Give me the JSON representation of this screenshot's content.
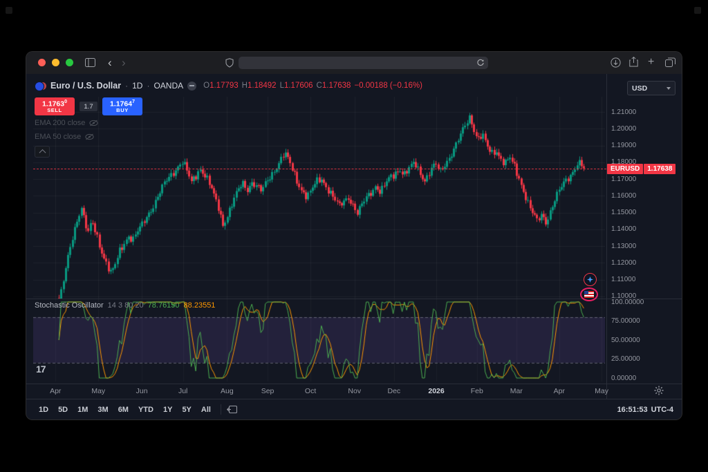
{
  "browser": {
    "url_text": ""
  },
  "header": {
    "title": "Euro / U.S. Dollar",
    "separator": "·",
    "timeframe": "1D",
    "exchange": "OANDA",
    "o_label": "O",
    "o": "1.17793",
    "h_label": "H",
    "h": "1.18492",
    "l_label": "L",
    "l": "1.17606",
    "c_label": "C",
    "c": "1.17638",
    "change": "−0.00188 (−0.16%)",
    "currency": "USD"
  },
  "trade": {
    "sell_price": "1.1763",
    "sell_sup": "0",
    "sell_label": "SELL",
    "spread": "1.7",
    "buy_price": "1.1764",
    "buy_sup": "7",
    "buy_label": "BUY"
  },
  "indicators": {
    "ema200": "EMA 200 close",
    "ema50": "EMA 50 close"
  },
  "price_axis": [
    "1.21000",
    "1.20000",
    "1.19000",
    "1.18000",
    "1.17000",
    "1.16000",
    "1.15000",
    "1.14000",
    "1.13000",
    "1.12000",
    "1.11000",
    "1.10000"
  ],
  "price_label": {
    "symbol": "EURUSD",
    "value": "1.17638"
  },
  "stoch_header": {
    "title": "Stochastic Oscillator",
    "params": "14 3 80 20",
    "k": "78.76150",
    "d": "88.23551"
  },
  "stoch_axis": [
    "100.00000",
    "75.00000",
    "50.00000",
    "25.00000",
    "0.00000"
  ],
  "time_axis": [
    {
      "label": "Apr",
      "f": 0.039
    },
    {
      "label": "May",
      "f": 0.114
    },
    {
      "label": "Jun",
      "f": 0.19
    },
    {
      "label": "Jul",
      "f": 0.262
    },
    {
      "label": "Aug",
      "f": 0.339
    },
    {
      "label": "Sep",
      "f": 0.41
    },
    {
      "label": "Oct",
      "f": 0.485
    },
    {
      "label": "Nov",
      "f": 0.562
    },
    {
      "label": "Dec",
      "f": 0.631
    },
    {
      "label": "2026",
      "f": 0.705,
      "bright": true
    },
    {
      "label": "Feb",
      "f": 0.776
    },
    {
      "label": "Mar",
      "f": 0.845
    },
    {
      "label": "Apr",
      "f": 0.92
    },
    {
      "label": "May",
      "f": 0.994
    }
  ],
  "toolbar": {
    "ranges": [
      "1D",
      "5D",
      "1M",
      "3M",
      "6M",
      "YTD",
      "1Y",
      "5Y",
      "All"
    ],
    "time": "16:51:53",
    "tz": "UTC-4"
  },
  "icons": {
    "back": "‹",
    "forward": "›",
    "new_tab": "+",
    "tv_logo": "17"
  },
  "chart_data": {
    "type": "candlestick",
    "symbol": "EURUSD",
    "timeframe": "1D",
    "last_price": 1.17638,
    "visible_price_range": [
      1.0988,
      1.2191
    ],
    "up_color": "#089981",
    "down_color": "#f23645",
    "num_candles": 235,
    "anchors": [
      [
        0.045,
        1.096
      ],
      [
        0.052,
        1.107
      ],
      [
        0.058,
        1.118
      ],
      [
        0.064,
        1.128
      ],
      [
        0.07,
        1.138
      ],
      [
        0.077,
        1.147
      ],
      [
        0.084,
        1.154
      ],
      [
        0.09,
        1.144
      ],
      [
        0.096,
        1.137
      ],
      [
        0.102,
        1.144
      ],
      [
        0.108,
        1.139
      ],
      [
        0.114,
        1.133
      ],
      [
        0.121,
        1.126
      ],
      [
        0.128,
        1.12
      ],
      [
        0.136,
        1.113
      ],
      [
        0.143,
        1.118
      ],
      [
        0.15,
        1.126
      ],
      [
        0.158,
        1.132
      ],
      [
        0.166,
        1.137
      ],
      [
        0.174,
        1.134
      ],
      [
        0.182,
        1.138
      ],
      [
        0.19,
        1.142
      ],
      [
        0.2,
        1.149
      ],
      [
        0.21,
        1.155
      ],
      [
        0.22,
        1.161
      ],
      [
        0.23,
        1.167
      ],
      [
        0.24,
        1.172
      ],
      [
        0.25,
        1.177
      ],
      [
        0.26,
        1.181
      ],
      [
        0.268,
        1.175
      ],
      [
        0.276,
        1.167
      ],
      [
        0.284,
        1.172
      ],
      [
        0.292,
        1.177
      ],
      [
        0.3,
        1.173
      ],
      [
        0.308,
        1.167
      ],
      [
        0.316,
        1.159
      ],
      [
        0.324,
        1.152
      ],
      [
        0.331,
        1.143
      ],
      [
        0.339,
        1.149
      ],
      [
        0.348,
        1.156
      ],
      [
        0.357,
        1.162
      ],
      [
        0.366,
        1.167
      ],
      [
        0.374,
        1.164
      ],
      [
        0.382,
        1.169
      ],
      [
        0.391,
        1.166
      ],
      [
        0.399,
        1.162
      ],
      [
        0.407,
        1.167
      ],
      [
        0.415,
        1.172
      ],
      [
        0.423,
        1.177
      ],
      [
        0.431,
        1.181
      ],
      [
        0.439,
        1.185
      ],
      [
        0.447,
        1.18
      ],
      [
        0.455,
        1.174
      ],
      [
        0.463,
        1.168
      ],
      [
        0.471,
        1.163
      ],
      [
        0.479,
        1.159
      ],
      [
        0.487,
        1.163
      ],
      [
        0.495,
        1.168
      ],
      [
        0.503,
        1.171
      ],
      [
        0.511,
        1.167
      ],
      [
        0.519,
        1.162
      ],
      [
        0.527,
        1.157
      ],
      [
        0.535,
        1.153
      ],
      [
        0.543,
        1.157
      ],
      [
        0.551,
        1.16
      ],
      [
        0.559,
        1.155
      ],
      [
        0.567,
        1.149
      ],
      [
        0.575,
        1.154
      ],
      [
        0.583,
        1.159
      ],
      [
        0.591,
        1.163
      ],
      [
        0.599,
        1.167
      ],
      [
        0.607,
        1.162
      ],
      [
        0.615,
        1.166
      ],
      [
        0.623,
        1.17
      ],
      [
        0.631,
        1.173
      ],
      [
        0.64,
        1.177
      ],
      [
        0.649,
        1.173
      ],
      [
        0.658,
        1.176
      ],
      [
        0.667,
        1.179
      ],
      [
        0.676,
        1.174
      ],
      [
        0.685,
        1.17
      ],
      [
        0.694,
        1.175
      ],
      [
        0.703,
        1.178
      ],
      [
        0.712,
        1.174
      ],
      [
        0.721,
        1.18
      ],
      [
        0.73,
        1.185
      ],
      [
        0.739,
        1.19
      ],
      [
        0.748,
        1.196
      ],
      [
        0.757,
        1.203
      ],
      [
        0.764,
        1.208
      ],
      [
        0.77,
        1.201
      ],
      [
        0.777,
        1.194
      ],
      [
        0.785,
        1.196
      ],
      [
        0.793,
        1.189
      ],
      [
        0.801,
        1.185
      ],
      [
        0.809,
        1.188
      ],
      [
        0.817,
        1.183
      ],
      [
        0.825,
        1.179
      ],
      [
        0.833,
        1.182
      ],
      [
        0.841,
        1.177
      ],
      [
        0.849,
        1.171
      ],
      [
        0.857,
        1.164
      ],
      [
        0.865,
        1.156
      ],
      [
        0.873,
        1.149
      ],
      [
        0.881,
        1.144
      ],
      [
        0.889,
        1.149
      ],
      [
        0.897,
        1.145
      ],
      [
        0.905,
        1.152
      ],
      [
        0.913,
        1.158
      ],
      [
        0.921,
        1.163
      ],
      [
        0.929,
        1.168
      ],
      [
        0.937,
        1.172
      ],
      [
        0.945,
        1.176
      ],
      [
        0.952,
        1.18
      ],
      [
        0.958,
        1.178
      ],
      [
        0.963,
        1.17638
      ]
    ],
    "stoch": {
      "k_color": "#4caf50",
      "d_color": "#ff9800",
      "band": [
        20,
        80
      ],
      "band_fill": "rgba(126,87,194,0.16)",
      "band_line": "rgba(155,158,168,0.55)",
      "range": [
        0,
        100
      ],
      "k_last": 78.7615,
      "d_last": 88.23551
    }
  }
}
